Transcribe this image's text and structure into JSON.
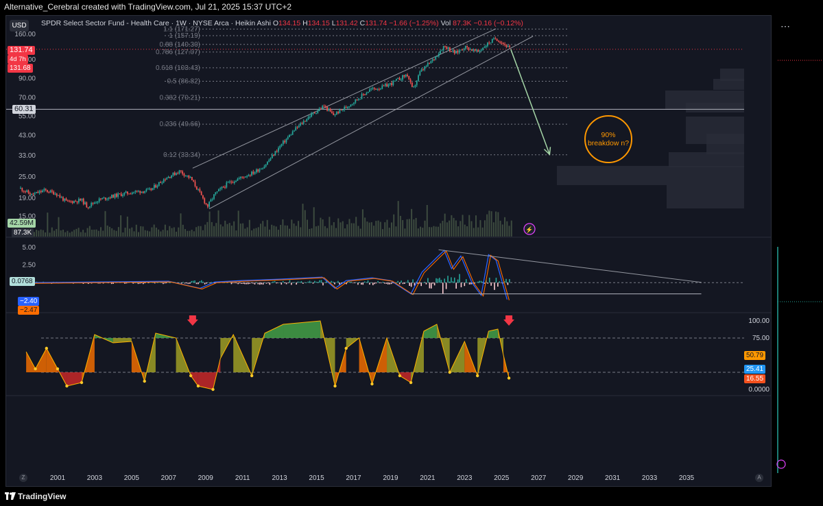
{
  "header": {
    "credit": "Alternative_Cerebral created with TradingView.com, Jul 21, 2025 15:37 UTC+2"
  },
  "legend": {
    "title": "SPDR Select Sector Fund - Health Care · 1W · NYSE Arca · Heikin Ashi",
    "o_label": "O",
    "o_value": "134.15",
    "h_label": "H",
    "h_value": "134.15",
    "l_label": "L",
    "l_value": "131.42",
    "c_label": "C",
    "c_value": "131.74",
    "change": "−1.66 (−1.25%)",
    "vol_label": "Vol",
    "vol_value": "87.3K",
    "vol_change": "−0.16 (−0.12%)"
  },
  "controls": {
    "currency": "USD",
    "more_icon": "more-dots-icon",
    "z_label": "Z",
    "a_label": "A"
  },
  "footer": {
    "brand": "TradingView",
    "logo": "tradingview-logo-icon"
  },
  "annotation": {
    "text": "90% breakdow n?"
  },
  "price_tags": {
    "last_price": "131.74",
    "countdown": "4d 7h",
    "prev_close": "131.68",
    "hline": "60.31",
    "volume_ma": "42.59M",
    "volume": "87.3K"
  },
  "macd_tags": {
    "hist": "0.0768",
    "macd": "−2.40",
    "signal": "−2.47"
  },
  "osc_tags": {
    "a": "50.79",
    "b": "25.41",
    "c": "16.55"
  },
  "colors": {
    "background": "#141722",
    "up": "#26a69a",
    "down": "#ef5350",
    "fib_label": "#787b86",
    "arrow": "#a5d6a7",
    "annotation": "#ff9800",
    "macd_line": "#2962ff",
    "signal_line": "#ff6d00"
  },
  "chart_data": [
    {
      "type": "candlestick",
      "title": "SPDR Select Sector Fund - Health Care · 1W · NYSE Arca · Heikin Ashi",
      "scale": "log",
      "ylim": [
        14,
        175
      ],
      "y_ticks": [
        15.0,
        19.0,
        25.0,
        33.0,
        43.0,
        55.0,
        70.0,
        90.0,
        115.0,
        160.0
      ],
      "x_ticks": [
        2001,
        2003,
        2005,
        2007,
        2009,
        2011,
        2013,
        2015,
        2017,
        2019,
        2021,
        2023,
        2025,
        2027,
        2029,
        2031,
        2033,
        2035
      ],
      "xlim": [
        1999,
        2038
      ],
      "trend_points": [
        [
          1999.0,
          21.5
        ],
        [
          1999.6,
          19.8
        ],
        [
          2000.3,
          21.0
        ],
        [
          2000.9,
          20.2
        ],
        [
          2001.5,
          18.0
        ],
        [
          2002.3,
          18.5
        ],
        [
          2002.6,
          17.0
        ],
        [
          2003.2,
          18.5
        ],
        [
          2004.0,
          19.5
        ],
        [
          2005.0,
          20.5
        ],
        [
          2006.0,
          21.0
        ],
        [
          2006.8,
          24.5
        ],
        [
          2007.6,
          27.0
        ],
        [
          2008.2,
          24.5
        ],
        [
          2008.6,
          21.0
        ],
        [
          2009.1,
          17.0
        ],
        [
          2009.5,
          20.0
        ],
        [
          2010.2,
          23.0
        ],
        [
          2010.8,
          24.5
        ],
        [
          2011.6,
          26.5
        ],
        [
          2012.2,
          29.0
        ],
        [
          2013.0,
          37.0
        ],
        [
          2013.8,
          46.0
        ],
        [
          2014.6,
          55.0
        ],
        [
          2015.4,
          63.0
        ],
        [
          2015.9,
          56.0
        ],
        [
          2016.6,
          62.0
        ],
        [
          2017.3,
          70.0
        ],
        [
          2017.9,
          78.0
        ],
        [
          2018.5,
          80.0
        ],
        [
          2019.0,
          84.0
        ],
        [
          2019.9,
          95.0
        ],
        [
          2020.2,
          77.0
        ],
        [
          2020.6,
          98.0
        ],
        [
          2021.3,
          115.0
        ],
        [
          2021.9,
          138.0
        ],
        [
          2022.5,
          125.0
        ],
        [
          2023.0,
          136.0
        ],
        [
          2023.7,
          127.0
        ],
        [
          2024.3,
          143.0
        ],
        [
          2024.7,
          152.0
        ],
        [
          2025.1,
          142.0
        ],
        [
          2025.5,
          131.74
        ]
      ],
      "last_price": 131.74,
      "horizontal_line": 60.31,
      "fib_levels": [
        {
          "ratio": "1.1",
          "value": 171.27
        },
        {
          "ratio": "1",
          "value": 157.19
        },
        {
          "ratio": "0.88",
          "value": 140.3
        },
        {
          "ratio": "0.786",
          "value": 127.07
        },
        {
          "ratio": "0.618",
          "value": 103.43
        },
        {
          "ratio": "0.5",
          "value": 86.82
        },
        {
          "ratio": "0.382",
          "value": 70.21
        },
        {
          "ratio": "0.236",
          "value": 49.66
        },
        {
          "ratio": "0.12",
          "value": 33.34
        }
      ],
      "channel_upper": [
        [
          2008.3,
          28.0
        ],
        [
          2024.7,
          172.0
        ]
      ],
      "channel_lower": [
        [
          2009.2,
          16.5
        ],
        [
          2026.7,
          156.0
        ]
      ],
      "projection_arrow": [
        [
          2025.5,
          131.74
        ],
        [
          2027.6,
          33.5
        ]
      ]
    },
    {
      "type": "bar",
      "title": "Volume",
      "volume_ma": "42.59M",
      "volume": "87.3K"
    },
    {
      "type": "line",
      "title": "MACD",
      "y_ticks": [
        5.0,
        2.5
      ],
      "ylim": [
        -3.2,
        5.6
      ],
      "macd_points": [
        [
          1999.3,
          0.0
        ],
        [
          2003.0,
          0.1
        ],
        [
          2007.0,
          0.2
        ],
        [
          2008.7,
          -0.8
        ],
        [
          2009.5,
          0.1
        ],
        [
          2011.0,
          0.3
        ],
        [
          2013.0,
          0.5
        ],
        [
          2015.3,
          0.8
        ],
        [
          2016.0,
          -0.8
        ],
        [
          2016.6,
          0.3
        ],
        [
          2018.0,
          0.7
        ],
        [
          2019.0,
          0.3
        ],
        [
          2020.1,
          -1.6
        ],
        [
          2020.7,
          1.5
        ],
        [
          2021.5,
          3.6
        ],
        [
          2021.9,
          4.6
        ],
        [
          2022.3,
          2.0
        ],
        [
          2022.8,
          3.8
        ],
        [
          2023.4,
          0.0
        ],
        [
          2023.9,
          -1.8
        ],
        [
          2024.3,
          4.0
        ],
        [
          2024.7,
          3.2
        ],
        [
          2025.0,
          0.4
        ],
        [
          2025.3,
          -2.4
        ]
      ],
      "macd_value": -2.4,
      "signal_value": -2.47,
      "hist_value": 0.0768,
      "trendline": [
        [
          2021.6,
          4.7
        ],
        [
          2035.8,
          0.05
        ]
      ],
      "support_line": [
        [
          2020.1,
          -1.6
        ],
        [
          2035.8,
          -1.6
        ]
      ]
    },
    {
      "type": "area",
      "title": "Oscillator",
      "y_ticks": [
        100.0,
        75.0,
        0.0
      ],
      "ylim": [
        0,
        100
      ],
      "bands": [
        75,
        25
      ],
      "points": [
        [
          1999.3,
          55.0
        ],
        [
          1999.8,
          30.0
        ],
        [
          2000.4,
          60.0
        ],
        [
          2001.0,
          30.0
        ],
        [
          2001.5,
          5.0
        ],
        [
          2002.3,
          10.0
        ],
        [
          2003.0,
          80.0
        ],
        [
          2004.0,
          68.0
        ],
        [
          2005.0,
          70.0
        ],
        [
          2005.7,
          12.0
        ],
        [
          2006.3,
          82.0
        ],
        [
          2007.4,
          75.0
        ],
        [
          2008.2,
          20.0
        ],
        [
          2008.6,
          5.0
        ],
        [
          2009.4,
          0.0
        ],
        [
          2009.8,
          45.0
        ],
        [
          2010.5,
          80.0
        ],
        [
          2011.5,
          20.0
        ],
        [
          2012.2,
          82.0
        ],
        [
          2013.2,
          95.0
        ],
        [
          2015.2,
          100.0
        ],
        [
          2016.0,
          5.0
        ],
        [
          2016.6,
          60.0
        ],
        [
          2017.3,
          75.0
        ],
        [
          2018.0,
          8.0
        ],
        [
          2018.8,
          75.0
        ],
        [
          2019.5,
          20.0
        ],
        [
          2020.1,
          10.0
        ],
        [
          2020.8,
          85.0
        ],
        [
          2021.5,
          95.0
        ],
        [
          2022.2,
          25.0
        ],
        [
          2023.0,
          70.0
        ],
        [
          2023.7,
          20.0
        ],
        [
          2024.3,
          85.0
        ],
        [
          2024.8,
          88.0
        ],
        [
          2025.1,
          50.0
        ],
        [
          2025.4,
          16.55
        ]
      ],
      "markers": [
        2008.3,
        2025.4
      ]
    }
  ]
}
